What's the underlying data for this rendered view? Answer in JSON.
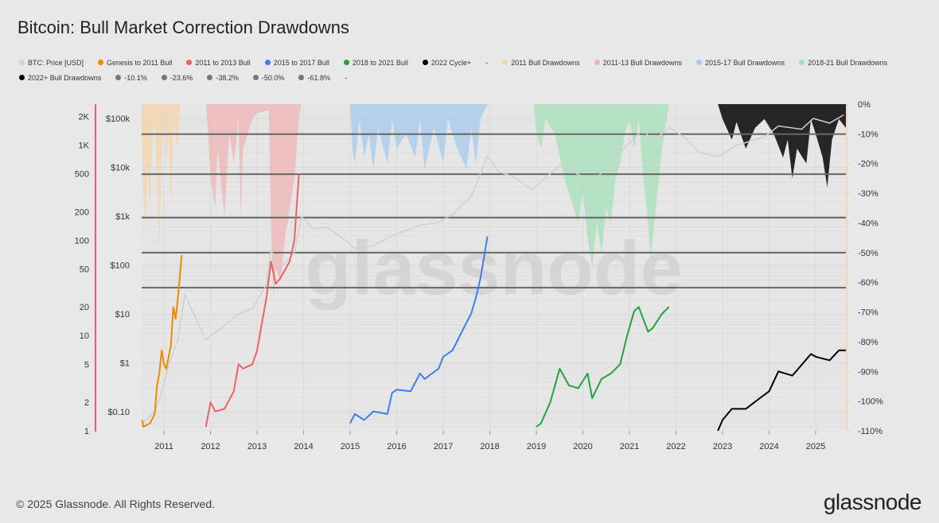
{
  "title": "Bitcoin: Bull Market Correction Drawdowns",
  "footer": "© 2025 Glassnode. All Rights Reserved.",
  "logo": "glassnode",
  "watermark": "glassnode",
  "legend": [
    {
      "label": "BTC: Price [USD]",
      "color": "#d4d4d4"
    },
    {
      "label": "Genesis to 2011 Bull",
      "color": "#ee8a00"
    },
    {
      "label": "2011 to 2013 Bull",
      "color": "#e86464"
    },
    {
      "label": "2015 to 2017 Bull",
      "color": "#3d7ee8"
    },
    {
      "label": "2018 to 2021 Bull",
      "color": "#1fa33a"
    },
    {
      "label": "2022 Cycle+",
      "color": "#000000"
    },
    {
      "label": "-",
      "color": null
    },
    {
      "label": "2011 Bull Drawdowns",
      "color": "#f3d3a8"
    },
    {
      "label": "2011-13 Bull Drawdowns",
      "color": "#f0b4b4"
    },
    {
      "label": "2015-17 Bull Drawdowns",
      "color": "#a6c9ec"
    },
    {
      "label": "2018-21 Bull Drawdowns",
      "color": "#a6e0b8"
    },
    {
      "label": "2022+ Bull Drawdowns",
      "color": "#000000"
    },
    {
      "label": "-10.1%",
      "color": "#777777"
    },
    {
      "label": "-23.6%",
      "color": "#777777"
    },
    {
      "label": "-38.2%",
      "color": "#777777"
    },
    {
      "label": "-50.0%",
      "color": "#777777"
    },
    {
      "label": "-61.8%",
      "color": "#777777"
    },
    {
      "label": "-",
      "color": null
    }
  ],
  "chart_data": {
    "type": "line",
    "xlim": [
      2010.52,
      2025.65
    ],
    "x_ticks": [
      "2011",
      "2012",
      "2013",
      "2014",
      "2015",
      "2016",
      "2017",
      "2018",
      "2019",
      "2020",
      "2021",
      "2022",
      "2023",
      "2024",
      "2025"
    ],
    "y_multiple": {
      "scale": "log",
      "range": [
        1,
        2700
      ],
      "ticks": [
        "1",
        "2",
        "5",
        "10",
        "20",
        "50",
        "100",
        "200",
        "500",
        "1K",
        "2K"
      ],
      "tick_values": [
        1,
        2,
        5,
        10,
        20,
        50,
        100,
        200,
        500,
        1000,
        2000
      ]
    },
    "y_price": {
      "scale": "log",
      "range": [
        0.041,
        196000
      ],
      "ticks": [
        "$0.10",
        "$1",
        "$10",
        "$100",
        "$1k",
        "$10k",
        "$100k"
      ],
      "tick_values": [
        0.1,
        1,
        10,
        100,
        1000,
        10000,
        100000
      ]
    },
    "y_drawdown": {
      "scale": "linear",
      "range": [
        -110,
        0
      ],
      "ticks": [
        "0%",
        "-10%",
        "-20%",
        "-30%",
        "-40%",
        "-50%",
        "-60%",
        "-70%",
        "-80%",
        "-90%",
        "-100%",
        "-110%"
      ],
      "tick_values": [
        0,
        -10,
        -20,
        -30,
        -40,
        -50,
        -60,
        -70,
        -80,
        -90,
        -100,
        -110
      ]
    },
    "levels": [
      -10.1,
      -23.6,
      -38.2,
      -50.0,
      -61.8
    ],
    "price": [
      [
        2010.55,
        0.06
      ],
      [
        2010.8,
        0.1
      ],
      [
        2010.95,
        0.25
      ],
      [
        2011.1,
        0.9
      ],
      [
        2011.3,
        3
      ],
      [
        2011.45,
        25
      ],
      [
        2011.6,
        12
      ],
      [
        2011.9,
        3
      ],
      [
        2012.2,
        5
      ],
      [
        2012.6,
        10
      ],
      [
        2012.9,
        13
      ],
      [
        2013.2,
        40
      ],
      [
        2013.3,
        200
      ],
      [
        2013.5,
        90
      ],
      [
        2013.8,
        180
      ],
      [
        2013.95,
        1000
      ],
      [
        2014.2,
        550
      ],
      [
        2014.5,
        600
      ],
      [
        2014.9,
        320
      ],
      [
        2015.1,
        220
      ],
      [
        2015.5,
        250
      ],
      [
        2015.9,
        400
      ],
      [
        2016.5,
        650
      ],
      [
        2016.9,
        750
      ],
      [
        2017.2,
        1100
      ],
      [
        2017.6,
        2500
      ],
      [
        2017.95,
        17000
      ],
      [
        2018.2,
        8000
      ],
      [
        2018.5,
        6500
      ],
      [
        2018.9,
        3500
      ],
      [
        2019.5,
        11000
      ],
      [
        2019.9,
        7200
      ],
      [
        2020.2,
        5000
      ],
      [
        2020.5,
        9500
      ],
      [
        2020.95,
        29000
      ],
      [
        2021.3,
        60000
      ],
      [
        2021.5,
        33000
      ],
      [
        2021.85,
        66000
      ],
      [
        2022.2,
        40000
      ],
      [
        2022.5,
        20000
      ],
      [
        2022.9,
        16500
      ],
      [
        2023.3,
        28000
      ],
      [
        2023.9,
        42000
      ],
      [
        2024.2,
        70000
      ],
      [
        2024.7,
        60000
      ],
      [
        2024.95,
        100000
      ],
      [
        2025.3,
        80000
      ],
      [
        2025.6,
        118000
      ]
    ],
    "series": [
      {
        "name": "Genesis to 2011 Bull",
        "color": "#ee8a00",
        "points": [
          [
            2010.53,
            1.3
          ],
          [
            2010.56,
            1.1
          ],
          [
            2010.7,
            1.2
          ],
          [
            2010.8,
            1.5
          ],
          [
            2010.85,
            3
          ],
          [
            2010.9,
            4
          ],
          [
            2010.95,
            7
          ],
          [
            2011.0,
            5
          ],
          [
            2011.05,
            4.5
          ],
          [
            2011.15,
            8
          ],
          [
            2011.2,
            20
          ],
          [
            2011.25,
            15
          ],
          [
            2011.3,
            25
          ],
          [
            2011.38,
            70
          ]
        ]
      },
      {
        "name": "2011 to 2013 Bull",
        "color": "#e86464",
        "points": [
          [
            2011.9,
            1.1
          ],
          [
            2012.0,
            2.0
          ],
          [
            2012.1,
            1.6
          ],
          [
            2012.3,
            1.7
          ],
          [
            2012.5,
            2.6
          ],
          [
            2012.6,
            5
          ],
          [
            2012.7,
            4.5
          ],
          [
            2012.9,
            5
          ],
          [
            2013.0,
            7
          ],
          [
            2013.2,
            25
          ],
          [
            2013.3,
            60
          ],
          [
            2013.4,
            35
          ],
          [
            2013.5,
            40
          ],
          [
            2013.7,
            60
          ],
          [
            2013.8,
            100
          ],
          [
            2013.9,
            500
          ]
        ]
      },
      {
        "name": "2015 to 2017 Bull",
        "color": "#3d7ee8",
        "points": [
          [
            2015.0,
            1.2
          ],
          [
            2015.1,
            1.5
          ],
          [
            2015.3,
            1.3
          ],
          [
            2015.5,
            1.6
          ],
          [
            2015.8,
            1.5
          ],
          [
            2015.9,
            2.5
          ],
          [
            2016.0,
            2.7
          ],
          [
            2016.3,
            2.6
          ],
          [
            2016.5,
            4
          ],
          [
            2016.6,
            3.5
          ],
          [
            2016.9,
            4.5
          ],
          [
            2017.0,
            6
          ],
          [
            2017.2,
            7
          ],
          [
            2017.4,
            11
          ],
          [
            2017.6,
            17
          ],
          [
            2017.7,
            25
          ],
          [
            2017.8,
            40
          ],
          [
            2017.95,
            110
          ]
        ]
      },
      {
        "name": "2018 to 2021 Bull",
        "color": "#1fa33a",
        "points": [
          [
            2019.0,
            1.1
          ],
          [
            2019.1,
            1.2
          ],
          [
            2019.3,
            2.0
          ],
          [
            2019.5,
            4.5
          ],
          [
            2019.7,
            3
          ],
          [
            2019.9,
            2.8
          ],
          [
            2020.1,
            4
          ],
          [
            2020.2,
            2.2
          ],
          [
            2020.4,
            3.5
          ],
          [
            2020.6,
            4
          ],
          [
            2020.8,
            5
          ],
          [
            2020.95,
            10
          ],
          [
            2021.1,
            18
          ],
          [
            2021.2,
            20
          ],
          [
            2021.4,
            11
          ],
          [
            2021.5,
            12
          ],
          [
            2021.7,
            17
          ],
          [
            2021.85,
            20
          ]
        ]
      },
      {
        "name": "2022 Cycle+",
        "color": "#000000",
        "points": [
          [
            2022.9,
            1.0
          ],
          [
            2023.0,
            1.3
          ],
          [
            2023.2,
            1.7
          ],
          [
            2023.5,
            1.7
          ],
          [
            2023.8,
            2.2
          ],
          [
            2024.0,
            2.6
          ],
          [
            2024.2,
            4.2
          ],
          [
            2024.5,
            3.8
          ],
          [
            2024.9,
            6.4
          ],
          [
            2025.0,
            6
          ],
          [
            2025.3,
            5.5
          ],
          [
            2025.5,
            7
          ],
          [
            2025.65,
            7
          ]
        ]
      }
    ],
    "drawdowns": [
      {
        "name": "2011 Bull Drawdowns",
        "color": "#f3d3a8",
        "points": [
          [
            2010.52,
            -5
          ],
          [
            2010.55,
            -30
          ],
          [
            2010.6,
            -40
          ],
          [
            2010.65,
            -20
          ],
          [
            2010.7,
            -35
          ],
          [
            2010.75,
            -10
          ],
          [
            2010.8,
            -5
          ],
          [
            2010.85,
            -25
          ],
          [
            2010.9,
            -50
          ],
          [
            2010.95,
            -15
          ],
          [
            2011.0,
            -5
          ],
          [
            2011.05,
            -20
          ],
          [
            2011.1,
            -10
          ],
          [
            2011.15,
            -35
          ],
          [
            2011.2,
            -5
          ],
          [
            2011.3,
            -15
          ],
          [
            2011.35,
            0
          ]
        ]
      },
      {
        "name": "2011-13 Bull Drawdowns",
        "color": "#f0b4b4",
        "points": [
          [
            2011.9,
            0
          ],
          [
            2011.95,
            -10
          ],
          [
            2012.0,
            -25
          ],
          [
            2012.1,
            -35
          ],
          [
            2012.15,
            -15
          ],
          [
            2012.3,
            -38
          ],
          [
            2012.4,
            -10
          ],
          [
            2012.5,
            -20
          ],
          [
            2012.6,
            -5
          ],
          [
            2012.65,
            -38
          ],
          [
            2012.7,
            -15
          ],
          [
            2012.9,
            -5
          ],
          [
            2013.0,
            -3
          ],
          [
            2013.25,
            -2
          ],
          [
            2013.3,
            -40
          ],
          [
            2013.35,
            -65
          ],
          [
            2013.4,
            -55
          ],
          [
            2013.5,
            -60
          ],
          [
            2013.6,
            -45
          ],
          [
            2013.7,
            -35
          ],
          [
            2013.8,
            -25
          ],
          [
            2013.9,
            -5
          ],
          [
            2013.95,
            0
          ]
        ]
      },
      {
        "name": "2015-17 Bull Drawdowns",
        "color": "#a6c9ec",
        "points": [
          [
            2015.0,
            0
          ],
          [
            2015.05,
            -15
          ],
          [
            2015.1,
            -20
          ],
          [
            2015.2,
            -5
          ],
          [
            2015.3,
            -18
          ],
          [
            2015.4,
            -10
          ],
          [
            2015.5,
            -22
          ],
          [
            2015.6,
            -8
          ],
          [
            2015.8,
            -20
          ],
          [
            2015.9,
            -5
          ],
          [
            2016.0,
            -15
          ],
          [
            2016.2,
            -10
          ],
          [
            2016.4,
            -18
          ],
          [
            2016.5,
            -5
          ],
          [
            2016.6,
            -22
          ],
          [
            2016.8,
            -8
          ],
          [
            2017.0,
            -20
          ],
          [
            2017.1,
            -5
          ],
          [
            2017.3,
            -15
          ],
          [
            2017.5,
            -22
          ],
          [
            2017.6,
            -8
          ],
          [
            2017.7,
            -20
          ],
          [
            2017.8,
            -5
          ],
          [
            2017.95,
            0
          ]
        ]
      },
      {
        "name": "2018-21 Bull Drawdowns",
        "color": "#a6e0b8",
        "points": [
          [
            2018.95,
            0
          ],
          [
            2019.0,
            -10
          ],
          [
            2019.1,
            -15
          ],
          [
            2019.2,
            -5
          ],
          [
            2019.4,
            -10
          ],
          [
            2019.6,
            -25
          ],
          [
            2019.8,
            -35
          ],
          [
            2019.9,
            -40
          ],
          [
            2020.0,
            -30
          ],
          [
            2020.1,
            -45
          ],
          [
            2020.2,
            -55
          ],
          [
            2020.3,
            -40
          ],
          [
            2020.4,
            -50
          ],
          [
            2020.5,
            -35
          ],
          [
            2020.6,
            -40
          ],
          [
            2020.7,
            -25
          ],
          [
            2020.8,
            -20
          ],
          [
            2020.9,
            -10
          ],
          [
            2021.0,
            -5
          ],
          [
            2021.1,
            -15
          ],
          [
            2021.2,
            -5
          ],
          [
            2021.3,
            -25
          ],
          [
            2021.4,
            -40
          ],
          [
            2021.45,
            -52
          ],
          [
            2021.5,
            -45
          ],
          [
            2021.6,
            -30
          ],
          [
            2021.7,
            -15
          ],
          [
            2021.85,
            0
          ]
        ]
      },
      {
        "name": "2022+ Bull Drawdowns",
        "color": "#111111",
        "points": [
          [
            2022.9,
            0
          ],
          [
            2023.0,
            -5
          ],
          [
            2023.2,
            -12
          ],
          [
            2023.3,
            -6
          ],
          [
            2023.5,
            -15
          ],
          [
            2023.7,
            -8
          ],
          [
            2023.9,
            -5
          ],
          [
            2024.1,
            -10
          ],
          [
            2024.3,
            -18
          ],
          [
            2024.4,
            -12
          ],
          [
            2024.5,
            -25
          ],
          [
            2024.6,
            -15
          ],
          [
            2024.8,
            -20
          ],
          [
            2024.9,
            -5
          ],
          [
            2025.0,
            -10
          ],
          [
            2025.15,
            -18
          ],
          [
            2025.25,
            -28
          ],
          [
            2025.35,
            -12
          ],
          [
            2025.5,
            -5
          ],
          [
            2025.65,
            -8
          ]
        ]
      }
    ],
    "grid": true,
    "legend_position": "top"
  }
}
